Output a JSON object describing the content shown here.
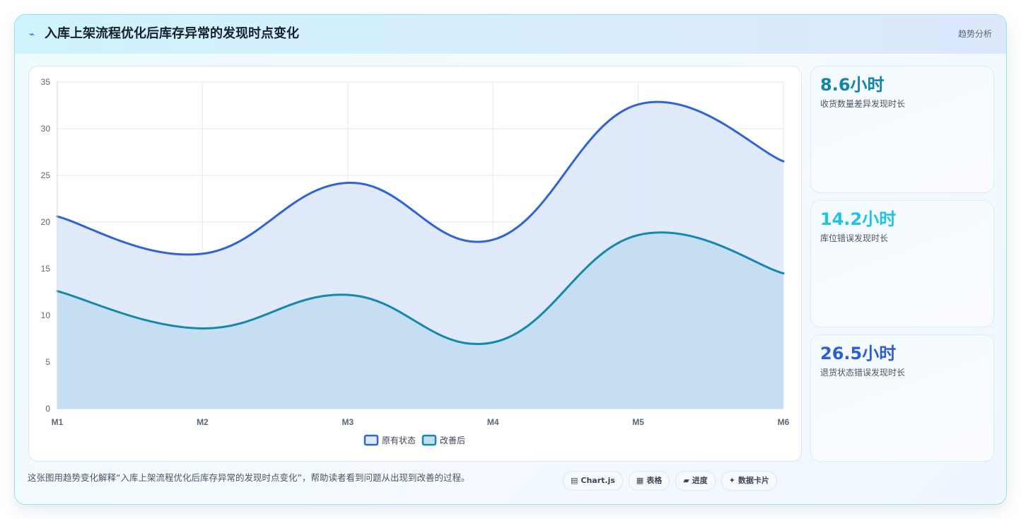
{
  "header": {
    "icon": "lightning-icon",
    "title": "入库上架流程优化后库存异常的发现时点变化",
    "badge": "趋势分析"
  },
  "chart_data": {
    "type": "area",
    "title": "",
    "xlabel": "",
    "ylabel": "",
    "categories": [
      "M1",
      "M2",
      "M3",
      "M4",
      "M5",
      "M6"
    ],
    "ylim": [
      0,
      35
    ],
    "yticks": [
      0,
      5,
      10,
      15,
      20,
      25,
      30,
      35
    ],
    "grid": true,
    "legend_position": "bottom",
    "series": [
      {
        "name": "原有状态",
        "values": [
          20.6,
          16.6,
          24.2,
          18.1,
          32.6,
          26.5
        ],
        "color": "#2f63d6",
        "fill": "#dfe9fb"
      },
      {
        "name": "改善后",
        "values": [
          12.6,
          8.6,
          12.2,
          7.1,
          18.6,
          14.5
        ],
        "color": "#1588ad",
        "fill": "#c3ddf1"
      }
    ]
  },
  "stats": [
    {
      "value": "8.6小时",
      "label": "收货数量差异发现时长",
      "color": "#1286a6"
    },
    {
      "value": "14.2小时",
      "label": "库位错误发现时长",
      "color": "#22c3e2"
    },
    {
      "value": "26.5小时",
      "label": "退货状态错误发现时长",
      "color": "#2d5fd3"
    }
  ],
  "footer": {
    "description": "这张图用趋势变化解释“入库上架流程优化后库存异常的发现时点变化”，帮助读者看到问题从出现到改善的过程。",
    "chips": [
      {
        "icon": "chart-icon",
        "glyph": "▤",
        "label": "Chart.js"
      },
      {
        "icon": "table-icon",
        "glyph": "▦",
        "label": "表格"
      },
      {
        "icon": "progress-icon",
        "glyph": "▰",
        "label": "进度"
      },
      {
        "icon": "sparkle-icon",
        "glyph": "✦",
        "label": "数据卡片"
      }
    ]
  }
}
